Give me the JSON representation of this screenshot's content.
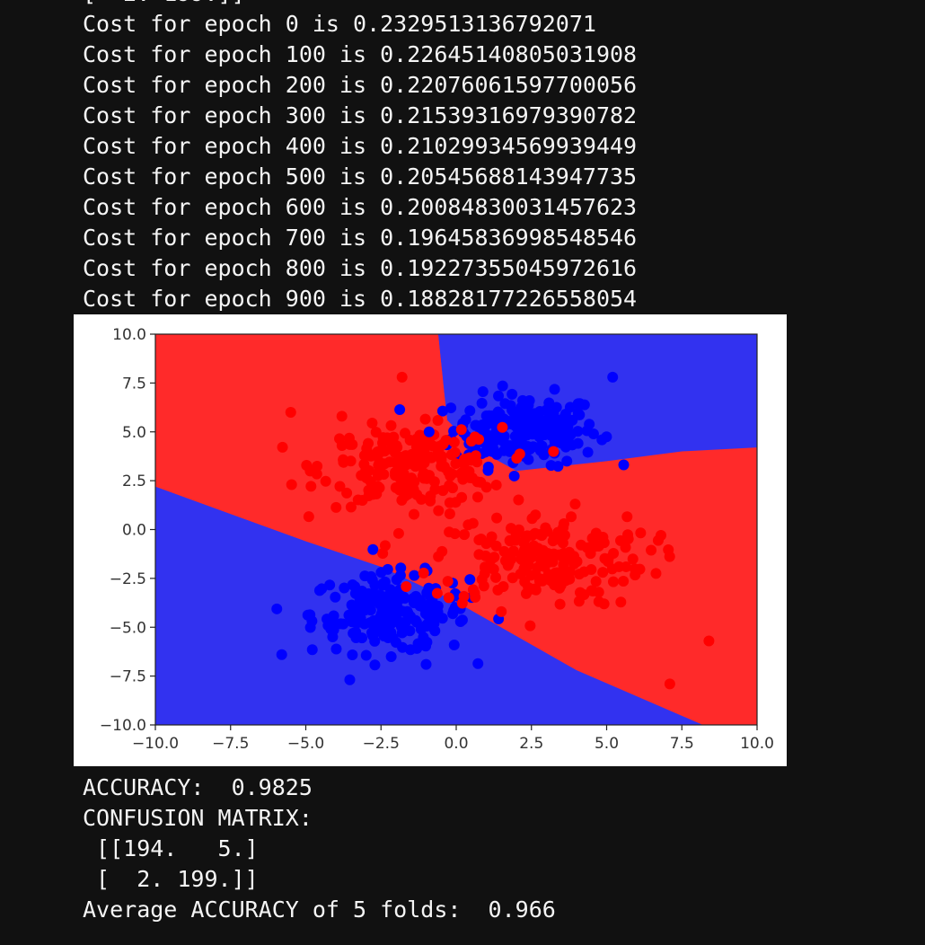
{
  "console": {
    "cut_line": "[  2. 199.]]",
    "log": [
      "Cost for epoch 0 is 0.2329513136792071",
      "Cost for epoch 100 is 0.22645140805031908",
      "Cost for epoch 200 is 0.22076061597700056",
      "Cost for epoch 300 is 0.21539316979390782",
      "Cost for epoch 400 is 0.21029934569939449",
      "Cost for epoch 500 is 0.20545688143947735",
      "Cost for epoch 600 is 0.20084830031457623",
      "Cost for epoch 700 is 0.19645836998548546",
      "Cost for epoch 800 is 0.19227355045972616",
      "Cost for epoch 900 is 0.18828177226558054"
    ],
    "accuracy": "ACCURACY:  0.9825",
    "confusion_title": "CONFUSION MATRIX:",
    "confusion_row1": " [[194.   5.]",
    "confusion_row2": " [  2. 199.]]",
    "average": "Average ACCURACY of 5 folds:  0.966"
  },
  "chart_data": {
    "type": "scatter",
    "title": "",
    "xlabel": "",
    "ylabel": "",
    "xlim": [
      -10,
      10
    ],
    "ylim": [
      -10,
      10
    ],
    "x_ticks": [
      "−10.0",
      "−7.5",
      "−5.0",
      "−2.5",
      "0.0",
      "2.5",
      "5.0",
      "7.5",
      "10.0"
    ],
    "y_ticks": [
      "10.0",
      "7.5",
      "5.0",
      "2.5",
      "0.0",
      "−2.5",
      "−5.0",
      "−7.5",
      "−10.0"
    ],
    "x_tick_values": [
      -10,
      -7.5,
      -5,
      -2.5,
      0,
      2.5,
      5,
      7.5,
      10
    ],
    "y_tick_values": [
      10,
      7.5,
      5,
      2.5,
      0,
      -2.5,
      -5,
      -7.5,
      -10
    ],
    "grid": false,
    "colors": {
      "region_red": "#ff2a2a",
      "region_blue": "#3232f0",
      "point_red": "#ff0000",
      "point_blue": "#0000ff"
    },
    "decision_regions": [
      {
        "class": "red",
        "polygon": [
          [
            -10,
            10
          ],
          [
            -0.6,
            10
          ],
          [
            -0.4,
            7
          ],
          [
            -0.3,
            5.6
          ],
          [
            0.6,
            4.2
          ],
          [
            2,
            3
          ],
          [
            5,
            3.5
          ],
          [
            7.5,
            4
          ],
          [
            10,
            4.2
          ],
          [
            10,
            -10
          ],
          [
            8.2,
            -10
          ],
          [
            4,
            -7.2
          ],
          [
            0,
            -3.7
          ],
          [
            -2.5,
            -1.9
          ],
          [
            -5,
            -0.6
          ],
          [
            -10,
            2.2
          ]
        ]
      },
      {
        "class": "red",
        "polygon": [
          [
            -10,
            8
          ],
          [
            -10,
            2.2
          ],
          [
            -5,
            -0.6
          ],
          [
            -2.5,
            -1.9
          ],
          [
            -1,
            -3
          ],
          [
            0.5,
            -3.5
          ],
          [
            1,
            -2
          ],
          [
            2,
            0.5
          ],
          [
            1.8,
            2.5
          ],
          [
            0.6,
            4.2
          ],
          [
            -0.3,
            5.6
          ],
          [
            -0.4,
            7
          ],
          [
            -0.6,
            10
          ],
          [
            -10,
            10
          ]
        ]
      }
    ],
    "clusters": [
      {
        "class": "blue",
        "center": [
          2.3,
          5.1
        ],
        "spread": [
          1.2,
          0.9
        ],
        "count": 200
      },
      {
        "class": "blue",
        "center": [
          -2.2,
          -4.3
        ],
        "spread": [
          1.3,
          1.0
        ],
        "count": 200
      },
      {
        "class": "red",
        "center": [
          -1.5,
          3.2
        ],
        "spread": [
          1.5,
          1.0
        ],
        "count": 200
      },
      {
        "class": "red",
        "center": [
          2.8,
          -1.5
        ],
        "spread": [
          1.8,
          1.2
        ],
        "count": 200
      }
    ],
    "points": [
      {
        "class": "blue",
        "x": -0.9,
        "y": 5.0
      },
      {
        "class": "red",
        "x": -1.8,
        "y": 7.8
      },
      {
        "class": "red",
        "x": -5.5,
        "y": 6.0
      },
      {
        "class": "red",
        "x": -3.8,
        "y": 5.8
      },
      {
        "class": "red",
        "x": 1.5,
        "y": -4.2
      },
      {
        "class": "red",
        "x": 8.4,
        "y": -5.7
      },
      {
        "class": "red",
        "x": 7.1,
        "y": -7.9
      },
      {
        "class": "blue",
        "x": -5.8,
        "y": -6.4
      },
      {
        "class": "blue",
        "x": 5.2,
        "y": 7.8
      },
      {
        "class": "blue",
        "x": -1.0,
        "y": -6.9
      }
    ]
  }
}
